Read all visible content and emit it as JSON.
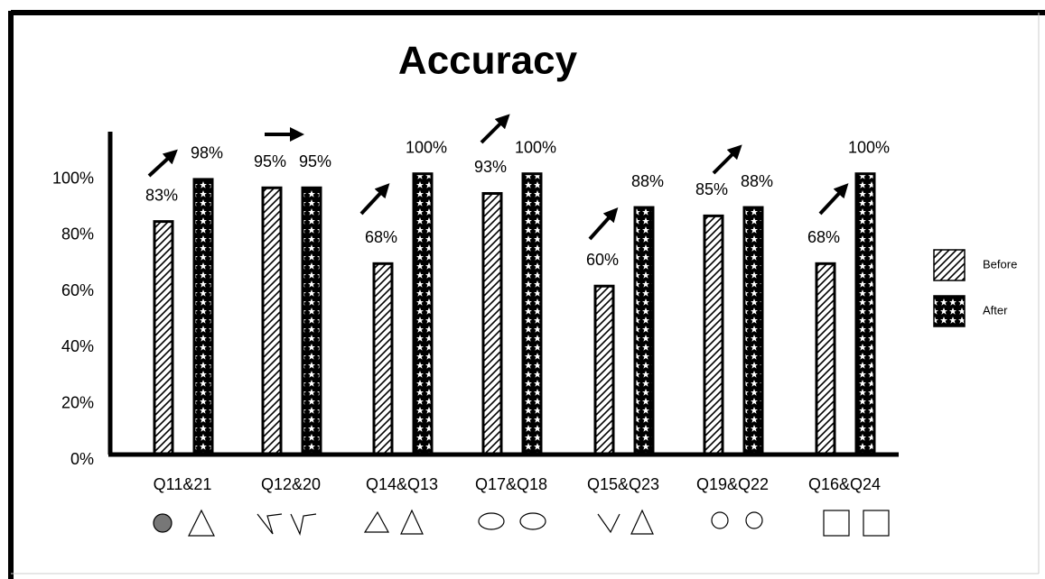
{
  "chart_data": {
    "type": "bar",
    "title": "Accuracy",
    "categories": [
      "Q11&21",
      "Q12&20",
      "Q14&Q13",
      "Q17&Q18",
      "Q15&Q23",
      "Q19&Q22",
      "Q16&Q24"
    ],
    "series": [
      {
        "name": "Before",
        "color": "#000000",
        "values": [
          83,
          95,
          68,
          93,
          60,
          85,
          68
        ],
        "value_labels": [
          "83%",
          "95%",
          "68%",
          "93%",
          "60%",
          "85%",
          "68%"
        ]
      },
      {
        "name": "After",
        "color": "#000000",
        "values": [
          98,
          95,
          100,
          100,
          88,
          88,
          100
        ],
        "value_labels": [
          "98%",
          "95%",
          "100%",
          "100%",
          "88%",
          "88%",
          "100%"
        ]
      }
    ],
    "ylim": [
      0,
      115
    ],
    "yticks": [
      {
        "value": 0,
        "label": "0%"
      },
      {
        "value": 20,
        "label": "20%"
      },
      {
        "value": 40,
        "label": "40%"
      },
      {
        "value": 60,
        "label": "60%"
      },
      {
        "value": 80,
        "label": "80%"
      },
      {
        "value": 100,
        "label": "100%"
      }
    ],
    "grid": false,
    "legend": "right"
  }
}
